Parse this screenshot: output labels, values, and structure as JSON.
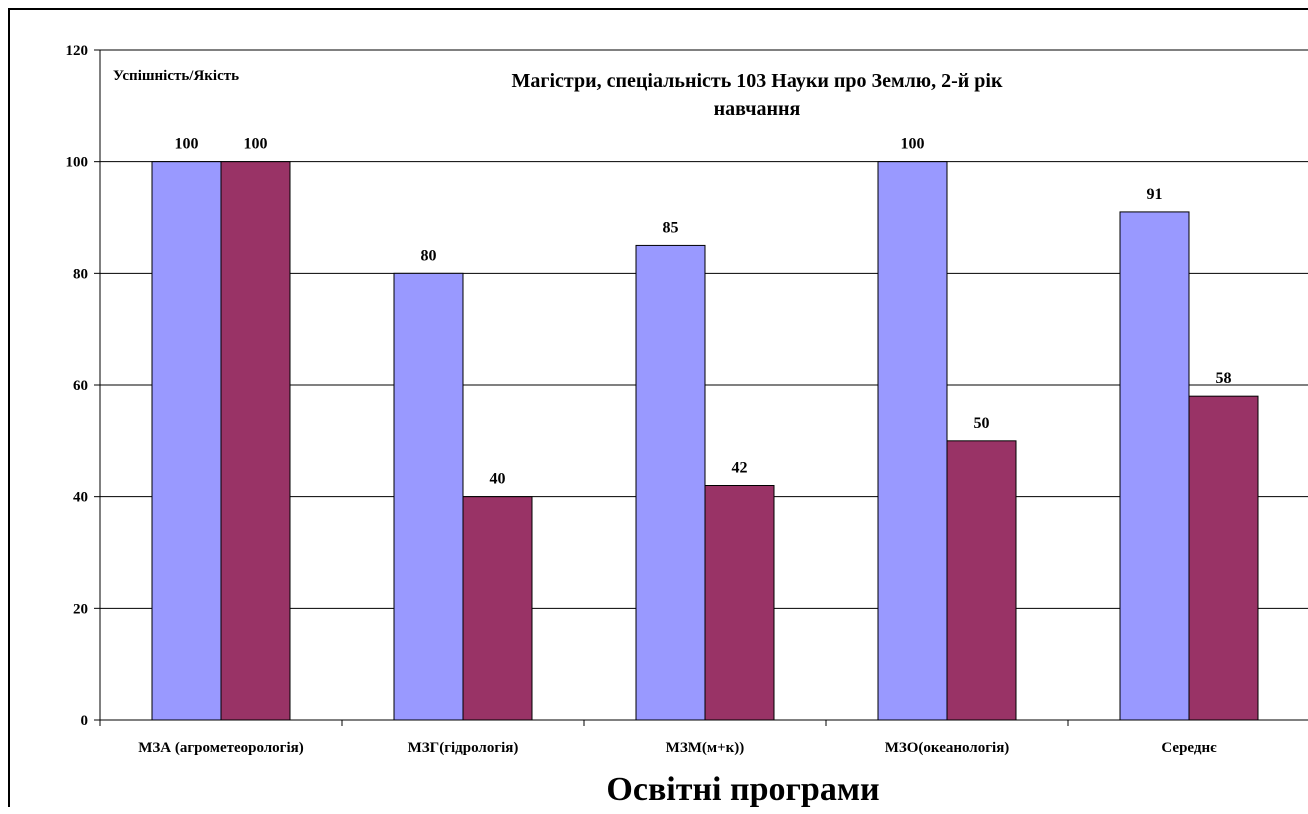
{
  "chart_data": {
    "type": "bar",
    "title": "Магістри, спеціальність 103 Науки про Землю, 2-й рік навчання",
    "title_lines": [
      "Магістри, спеціальність 103 Науки про Землю, 2-й рік",
      "навчання"
    ],
    "ylabel": "Успішність/Якість",
    "xlabel": "Освітні програми",
    "categories": [
      "МЗА (агрометеорологія)",
      "МЗГ(гідрологія)",
      "МЗМ(м+к))",
      "МЗО(океанологія)",
      "Середнє"
    ],
    "series": [
      {
        "values": [
          100,
          80,
          85,
          100,
          91
        ],
        "color": "#9999FF"
      },
      {
        "values": [
          100,
          40,
          42,
          50,
          58
        ],
        "color": "#993366"
      }
    ],
    "ylim": [
      0,
      120
    ],
    "yticks": [
      0,
      20,
      40,
      60,
      80,
      100,
      120
    ],
    "grid": true,
    "data_labels": true
  }
}
